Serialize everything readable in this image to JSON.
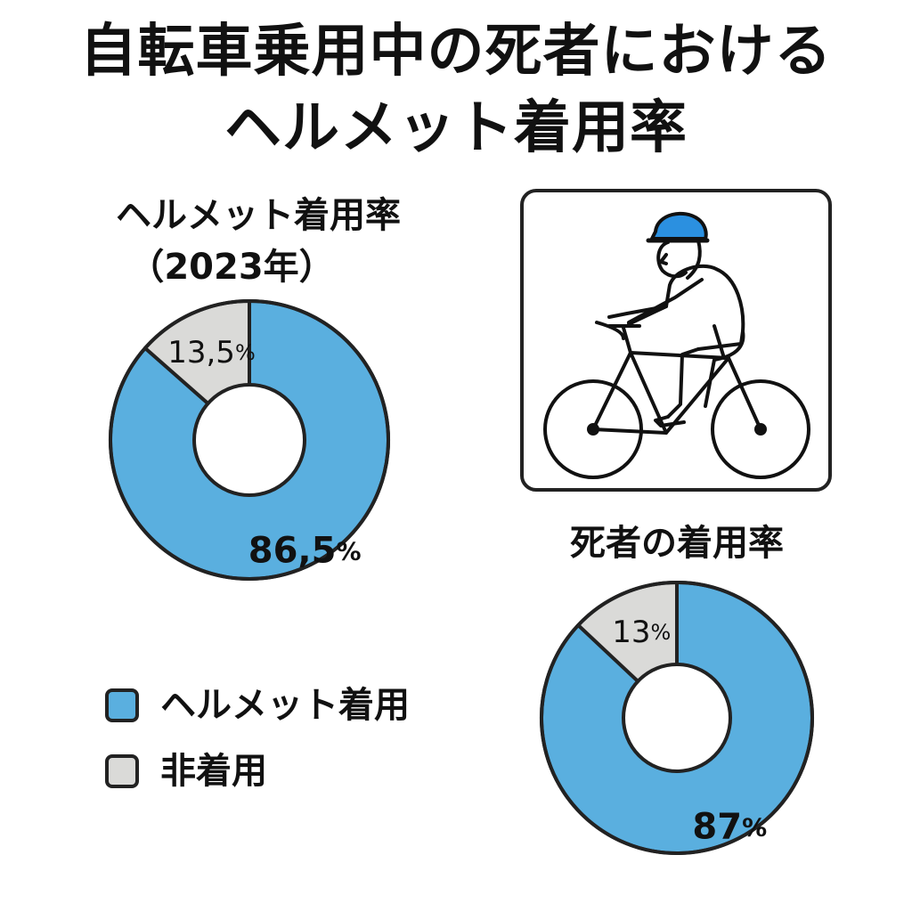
{
  "title": {
    "line1": "自転車乗用中の死者における",
    "line2": "ヘルメット着用率"
  },
  "colors": {
    "wearing": "#5aafdf",
    "not_wearing": "#dadad8",
    "outline": "#222222",
    "helmet": "#2b90e0"
  },
  "icons": {
    "cyclist": "cyclist-icon"
  },
  "legend": [
    {
      "label": "ヘルメット着用",
      "color": "#5aafdf"
    },
    {
      "label": "非着用",
      "color": "#dadad8"
    }
  ],
  "chart_data": [
    {
      "type": "pie",
      "title": "ヘルメット着用率",
      "subtitle": "（2023年）",
      "categories": [
        "ヘルメット着用",
        "非着用"
      ],
      "values": [
        86.5,
        13.5
      ],
      "data_labels": [
        "86,5%",
        "13,5%"
      ],
      "colors": [
        "#5aafdf",
        "#dadad8"
      ],
      "donut": true
    },
    {
      "type": "pie",
      "title": "死者の着用率",
      "categories": [
        "ヘルメット着用",
        "非着用"
      ],
      "values": [
        87,
        13
      ],
      "data_labels": [
        "87%",
        "13%"
      ],
      "colors": [
        "#5aafdf",
        "#dadad8"
      ],
      "donut": true
    }
  ]
}
